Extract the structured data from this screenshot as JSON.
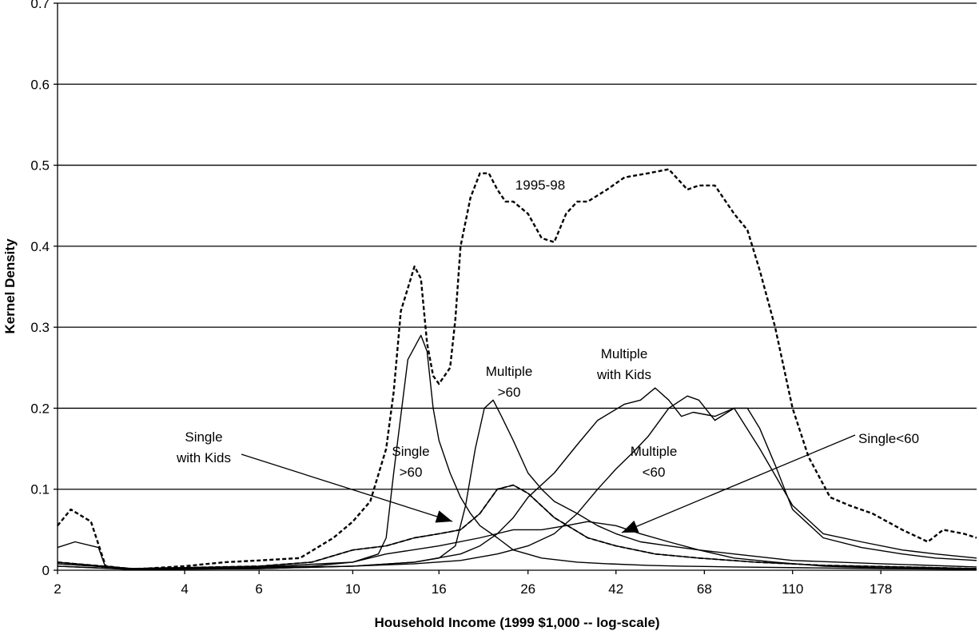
{
  "chart_data": {
    "type": "line",
    "title": "",
    "xlabel": "Household Income (1999 $1,000 -- log-scale)",
    "ylabel": "Kernel Density",
    "x_scale": "log",
    "xlim": [
      2,
      300
    ],
    "ylim": [
      0,
      0.7
    ],
    "grid": "horizontal",
    "x_ticks": [
      2,
      4,
      6,
      10,
      16,
      26,
      42,
      68,
      110,
      178
    ],
    "y_ticks": [
      0,
      0.1,
      0.2,
      0.3,
      0.4,
      0.5,
      0.6,
      0.7
    ],
    "y_tick_labels": [
      "0",
      "0.1",
      "0.2",
      "0.3",
      "0.4",
      "0.5",
      "0.6",
      "0.7"
    ],
    "annotations": [
      {
        "label_lines": [
          "1995-98"
        ]
      },
      {
        "label_lines": [
          "Multiple",
          "with Kids"
        ]
      },
      {
        "label_lines": [
          "Multiple",
          ">60"
        ]
      },
      {
        "label_lines": [
          "Single",
          ">60"
        ]
      },
      {
        "label_lines": [
          "Multiple",
          "<60"
        ]
      },
      {
        "label_lines": [
          "Single",
          "with Kids"
        ]
      },
      {
        "label_lines": [
          "Single<60"
        ]
      }
    ],
    "series": [
      {
        "style": "dashed",
        "x": [
          2.0,
          2.15,
          2.4,
          2.6,
          3.0,
          4.0,
          5.0,
          6.0,
          7.5,
          9.0,
          10.0,
          11.0,
          12.0,
          12.5,
          13.0,
          14.0,
          14.5,
          15.0,
          15.5,
          16.0,
          17.0,
          17.5,
          18.0,
          19.0,
          20.0,
          21.0,
          22.0,
          23.0,
          24.0,
          26.0,
          28.0,
          30.0,
          32.0,
          34.0,
          36.0,
          40.0,
          44.0,
          50.0,
          56.0,
          62.0,
          66.0,
          72.0,
          80.0,
          86.0,
          92.0,
          100.0,
          110.0,
          120.0,
          135.0,
          150.0,
          170.0,
          200.0,
          230.0,
          250.0,
          280.0,
          300.0
        ],
        "y": [
          0.055,
          0.075,
          0.06,
          0.005,
          0.001,
          0.005,
          0.01,
          0.012,
          0.015,
          0.04,
          0.06,
          0.085,
          0.15,
          0.22,
          0.32,
          0.375,
          0.36,
          0.28,
          0.24,
          0.23,
          0.25,
          0.31,
          0.4,
          0.46,
          0.49,
          0.49,
          0.47,
          0.455,
          0.455,
          0.44,
          0.41,
          0.405,
          0.44,
          0.455,
          0.455,
          0.47,
          0.485,
          0.49,
          0.495,
          0.47,
          0.475,
          0.475,
          0.44,
          0.42,
          0.37,
          0.3,
          0.2,
          0.14,
          0.09,
          0.08,
          0.07,
          0.05,
          0.035,
          0.05,
          0.045,
          0.04
        ]
      },
      {
        "name": "Single >60",
        "style": "solid",
        "x": [
          2.0,
          2.2,
          2.5,
          2.6,
          3.0,
          5.0,
          8.0,
          10.0,
          11.5,
          12.0,
          12.5,
          13.5,
          14.5,
          15.0,
          15.5,
          16.0,
          17.0,
          18.0,
          19.0,
          20.0,
          22.0,
          24.0,
          28.0,
          34.0,
          40.0,
          50.0,
          60.0,
          80.0,
          120.0,
          180.0,
          300.0
        ],
        "y": [
          0.028,
          0.035,
          0.028,
          0.003,
          0.001,
          0.003,
          0.005,
          0.01,
          0.02,
          0.04,
          0.12,
          0.26,
          0.29,
          0.27,
          0.2,
          0.16,
          0.12,
          0.09,
          0.07,
          0.055,
          0.04,
          0.025,
          0.015,
          0.01,
          0.008,
          0.006,
          0.005,
          0.004,
          0.003,
          0.002,
          0.001
        ]
      },
      {
        "name": "Multiple >60",
        "style": "solid",
        "x": [
          2.0,
          3.0,
          6.0,
          10.0,
          14.0,
          16.0,
          17.5,
          18.5,
          19.5,
          20.5,
          21.5,
          22.5,
          24.0,
          26.0,
          28.0,
          30.0,
          34.0,
          38.0,
          42.0,
          48.0,
          56.0,
          66.0,
          80.0,
          110.0,
          178.0,
          300.0
        ],
        "y": [
          0.008,
          0.002,
          0.003,
          0.005,
          0.01,
          0.015,
          0.03,
          0.08,
          0.15,
          0.2,
          0.21,
          0.19,
          0.16,
          0.12,
          0.1,
          0.085,
          0.07,
          0.055,
          0.045,
          0.035,
          0.03,
          0.025,
          0.02,
          0.012,
          0.008,
          0.004
        ]
      },
      {
        "name": "Multiple with Kids",
        "style": "solid",
        "x": [
          2.0,
          3.0,
          6.0,
          10.0,
          14.0,
          18.0,
          20.0,
          22.0,
          24.0,
          26.0,
          30.0,
          34.0,
          38.0,
          44.0,
          48.0,
          52.0,
          56.0,
          60.0,
          64.0,
          72.0,
          80.0,
          92.0,
          110.0,
          130.0,
          160.0,
          200.0,
          240.0,
          300.0
        ],
        "y": [
          0.005,
          0.001,
          0.002,
          0.005,
          0.01,
          0.02,
          0.03,
          0.045,
          0.065,
          0.09,
          0.12,
          0.155,
          0.185,
          0.205,
          0.21,
          0.225,
          0.21,
          0.19,
          0.195,
          0.19,
          0.2,
          0.15,
          0.08,
          0.045,
          0.035,
          0.025,
          0.02,
          0.015
        ]
      },
      {
        "name": "Multiple <60",
        "style": "solid",
        "x": [
          2.0,
          3.0,
          6.0,
          10.0,
          14.0,
          18.0,
          22.0,
          26.0,
          30.0,
          34.0,
          38.0,
          42.0,
          46.0,
          50.0,
          56.0,
          62.0,
          66.0,
          72.0,
          80.0,
          86.0,
          92.0,
          100.0,
          110.0,
          130.0,
          160.0,
          200.0,
          240.0,
          300.0
        ],
        "y": [
          0.005,
          0.001,
          0.002,
          0.005,
          0.008,
          0.012,
          0.02,
          0.03,
          0.045,
          0.07,
          0.1,
          0.125,
          0.145,
          0.165,
          0.2,
          0.215,
          0.21,
          0.185,
          0.2,
          0.2,
          0.175,
          0.13,
          0.075,
          0.04,
          0.028,
          0.02,
          0.015,
          0.012
        ]
      },
      {
        "name": "Single with Kids",
        "style": "solid",
        "x": [
          2.0,
          3.0,
          6.0,
          8.0,
          10.0,
          12.0,
          14.0,
          16.0,
          18.0,
          20.0,
          22.0,
          24.0,
          26.0,
          30.0,
          36.0,
          42.0,
          52.0,
          66.0,
          90.0,
          130.0,
          200.0,
          300.0
        ],
        "y": [
          0.01,
          0.002,
          0.005,
          0.01,
          0.025,
          0.03,
          0.04,
          0.045,
          0.05,
          0.07,
          0.1,
          0.105,
          0.095,
          0.065,
          0.04,
          0.03,
          0.02,
          0.015,
          0.01,
          0.006,
          0.004,
          0.002
        ]
      },
      {
        "name": "Single<60",
        "style": "solid",
        "x": [
          2.0,
          3.0,
          6.0,
          10.0,
          12.0,
          16.0,
          20.0,
          24.0,
          28.0,
          32.0,
          36.0,
          42.0,
          48.0,
          56.0,
          66.0,
          80.0,
          100.0,
          130.0,
          178.0,
          250.0,
          300.0
        ],
        "y": [
          0.008,
          0.002,
          0.004,
          0.01,
          0.02,
          0.03,
          0.04,
          0.05,
          0.05,
          0.055,
          0.06,
          0.055,
          0.045,
          0.035,
          0.025,
          0.015,
          0.01,
          0.005,
          0.003,
          0.002,
          0.001
        ]
      }
    ]
  }
}
